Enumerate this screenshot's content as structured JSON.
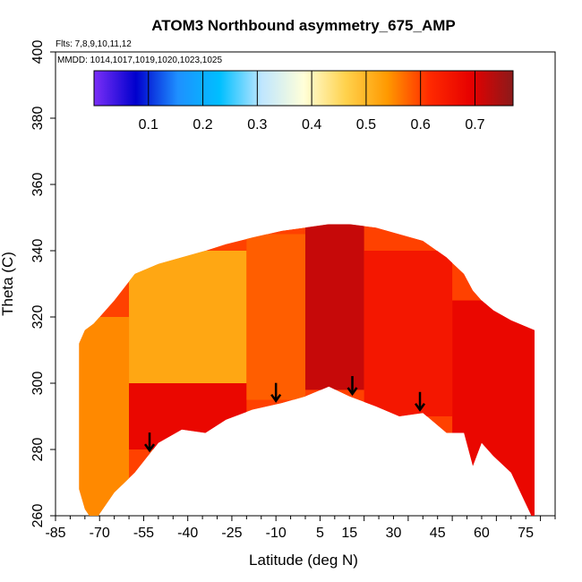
{
  "chart_data": {
    "type": "heatmap",
    "title": "ATOM3 Northbound asymmetry_675_AMP",
    "annotations": {
      "flights": "Flts: 7,8,9,10,11,12",
      "dates": "MMDD: 1014,1017,1019,1020,1023,1025"
    },
    "xlabel": "Latitude (deg N)",
    "ylabel": "Theta (C)",
    "xlim": [
      -85,
      85
    ],
    "ylim": [
      260,
      400
    ],
    "x_ticks": [
      "-85",
      "-70",
      "-55",
      "-40",
      "-25",
      "-10",
      "5",
      "15",
      "30",
      "45",
      "60",
      "75"
    ],
    "y_ticks": [
      "260",
      "280",
      "300",
      "320",
      "340",
      "360",
      "380",
      "400"
    ],
    "colorbar": {
      "range": [
        0.0,
        0.77
      ],
      "ticks": [
        "0.1",
        "0.2",
        "0.3",
        "0.4",
        "0.5",
        "0.6",
        "0.7"
      ],
      "colors": [
        "#7b2ff7",
        "#0000cd",
        "#1e90ff",
        "#00bfff",
        "#bfe6ff",
        "#ffffd9",
        "#ffd24d",
        "#ff9900",
        "#ff2a00",
        "#e60000",
        "#8b1a1a"
      ]
    },
    "arrows_at_latitude": [
      -53,
      -10,
      16,
      39
    ],
    "domain_profile": {
      "latitude": [
        -77,
        -75,
        -72,
        -65,
        -58,
        -50,
        -42,
        -34,
        -27,
        -18,
        -8,
        0,
        8,
        15,
        24,
        32,
        40,
        48,
        54,
        57,
        60,
        64,
        70,
        78
      ],
      "theta_min": [
        268,
        262,
        258,
        267,
        273,
        282,
        286,
        285,
        289,
        292,
        294,
        296,
        299,
        296,
        293,
        290,
        291,
        285,
        285,
        275,
        282,
        278,
        273,
        258
      ],
      "theta_max": [
        312,
        316,
        318,
        325,
        333,
        336,
        338,
        340,
        342,
        344,
        346,
        347,
        348,
        348,
        347,
        345,
        343,
        338,
        333,
        328,
        325,
        322,
        319,
        316
      ]
    },
    "regional_values": [
      {
        "lat_range": [
          -80,
          -60
        ],
        "theta_range": [
          260,
          320
        ],
        "asymmetry": 0.55
      },
      {
        "lat_range": [
          -60,
          -20
        ],
        "theta_range": [
          280,
          300
        ],
        "asymmetry": 0.68
      },
      {
        "lat_range": [
          -60,
          -20
        ],
        "theta_range": [
          300,
          340
        ],
        "asymmetry": 0.52
      },
      {
        "lat_range": [
          -20,
          0
        ],
        "theta_range": [
          295,
          345
        ],
        "asymmetry": 0.58
      },
      {
        "lat_range": [
          0,
          20
        ],
        "theta_range": [
          298,
          348
        ],
        "asymmetry": 0.72
      },
      {
        "lat_range": [
          20,
          50
        ],
        "theta_range": [
          290,
          340
        ],
        "asymmetry": 0.65
      },
      {
        "lat_range": [
          50,
          80
        ],
        "theta_range": [
          258,
          325
        ],
        "asymmetry": 0.68
      }
    ]
  }
}
